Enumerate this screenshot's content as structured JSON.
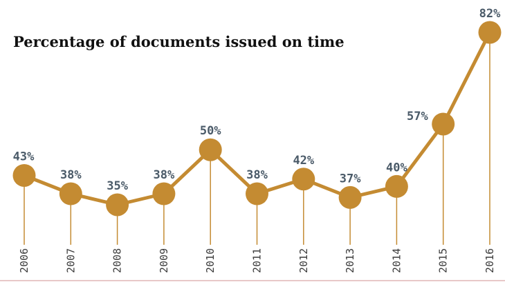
{
  "chart_data": {
    "type": "line",
    "title": "Percentage of documents issued on time",
    "xlabel": "",
    "ylabel": "",
    "categories": [
      "2006",
      "2007",
      "2008",
      "2009",
      "2010",
      "2011",
      "2012",
      "2013",
      "2014",
      "2015",
      "2016"
    ],
    "values": [
      43,
      38,
      35,
      38,
      50,
      38,
      42,
      37,
      40,
      57,
      82
    ],
    "value_labels": [
      "43%",
      "38%",
      "35%",
      "38%",
      "50%",
      "38%",
      "42%",
      "37%",
      "40%",
      "57%",
      "82%"
    ],
    "ylim": [
      0,
      90
    ],
    "grid": false,
    "colors": {
      "line": "#c48b32",
      "marker": "#c48b32",
      "label": "#4a5a68",
      "tick": "#3c3c3c",
      "baseline": "#e8c8c8"
    }
  }
}
